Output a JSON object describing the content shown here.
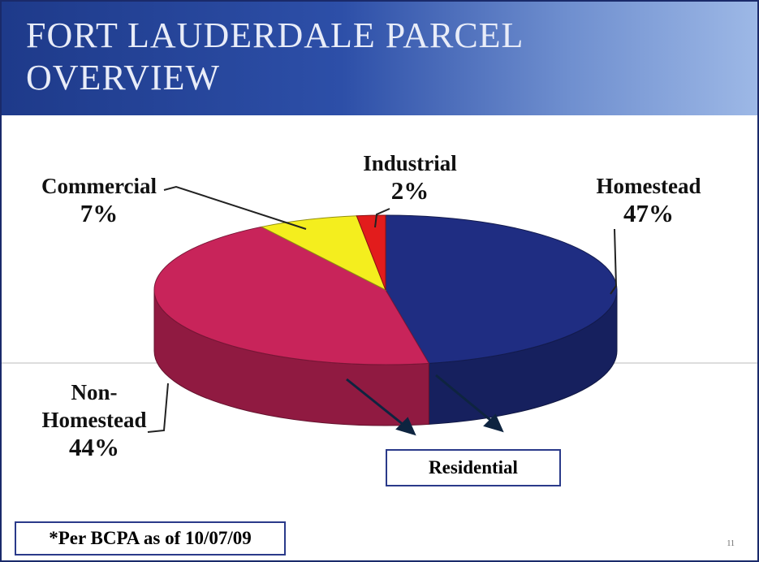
{
  "title": "FORT LAUDERDALE PARCEL OVERVIEW",
  "chart_data": {
    "type": "pie",
    "categories": [
      "Homestead",
      "Non-\nHomestead",
      "Commercial",
      "Industrial"
    ],
    "values": [
      47,
      44,
      7,
      2
    ],
    "value_labels": [
      "47%",
      "44%",
      "7%",
      "2%"
    ],
    "colors": [
      "#1f2d82",
      "#c8245a",
      "#f4ee1e",
      "#e21c1c"
    ],
    "annotation": "Residential"
  },
  "footnote": "*Per BCPA as of 10/07/09",
  "page_number": "11"
}
